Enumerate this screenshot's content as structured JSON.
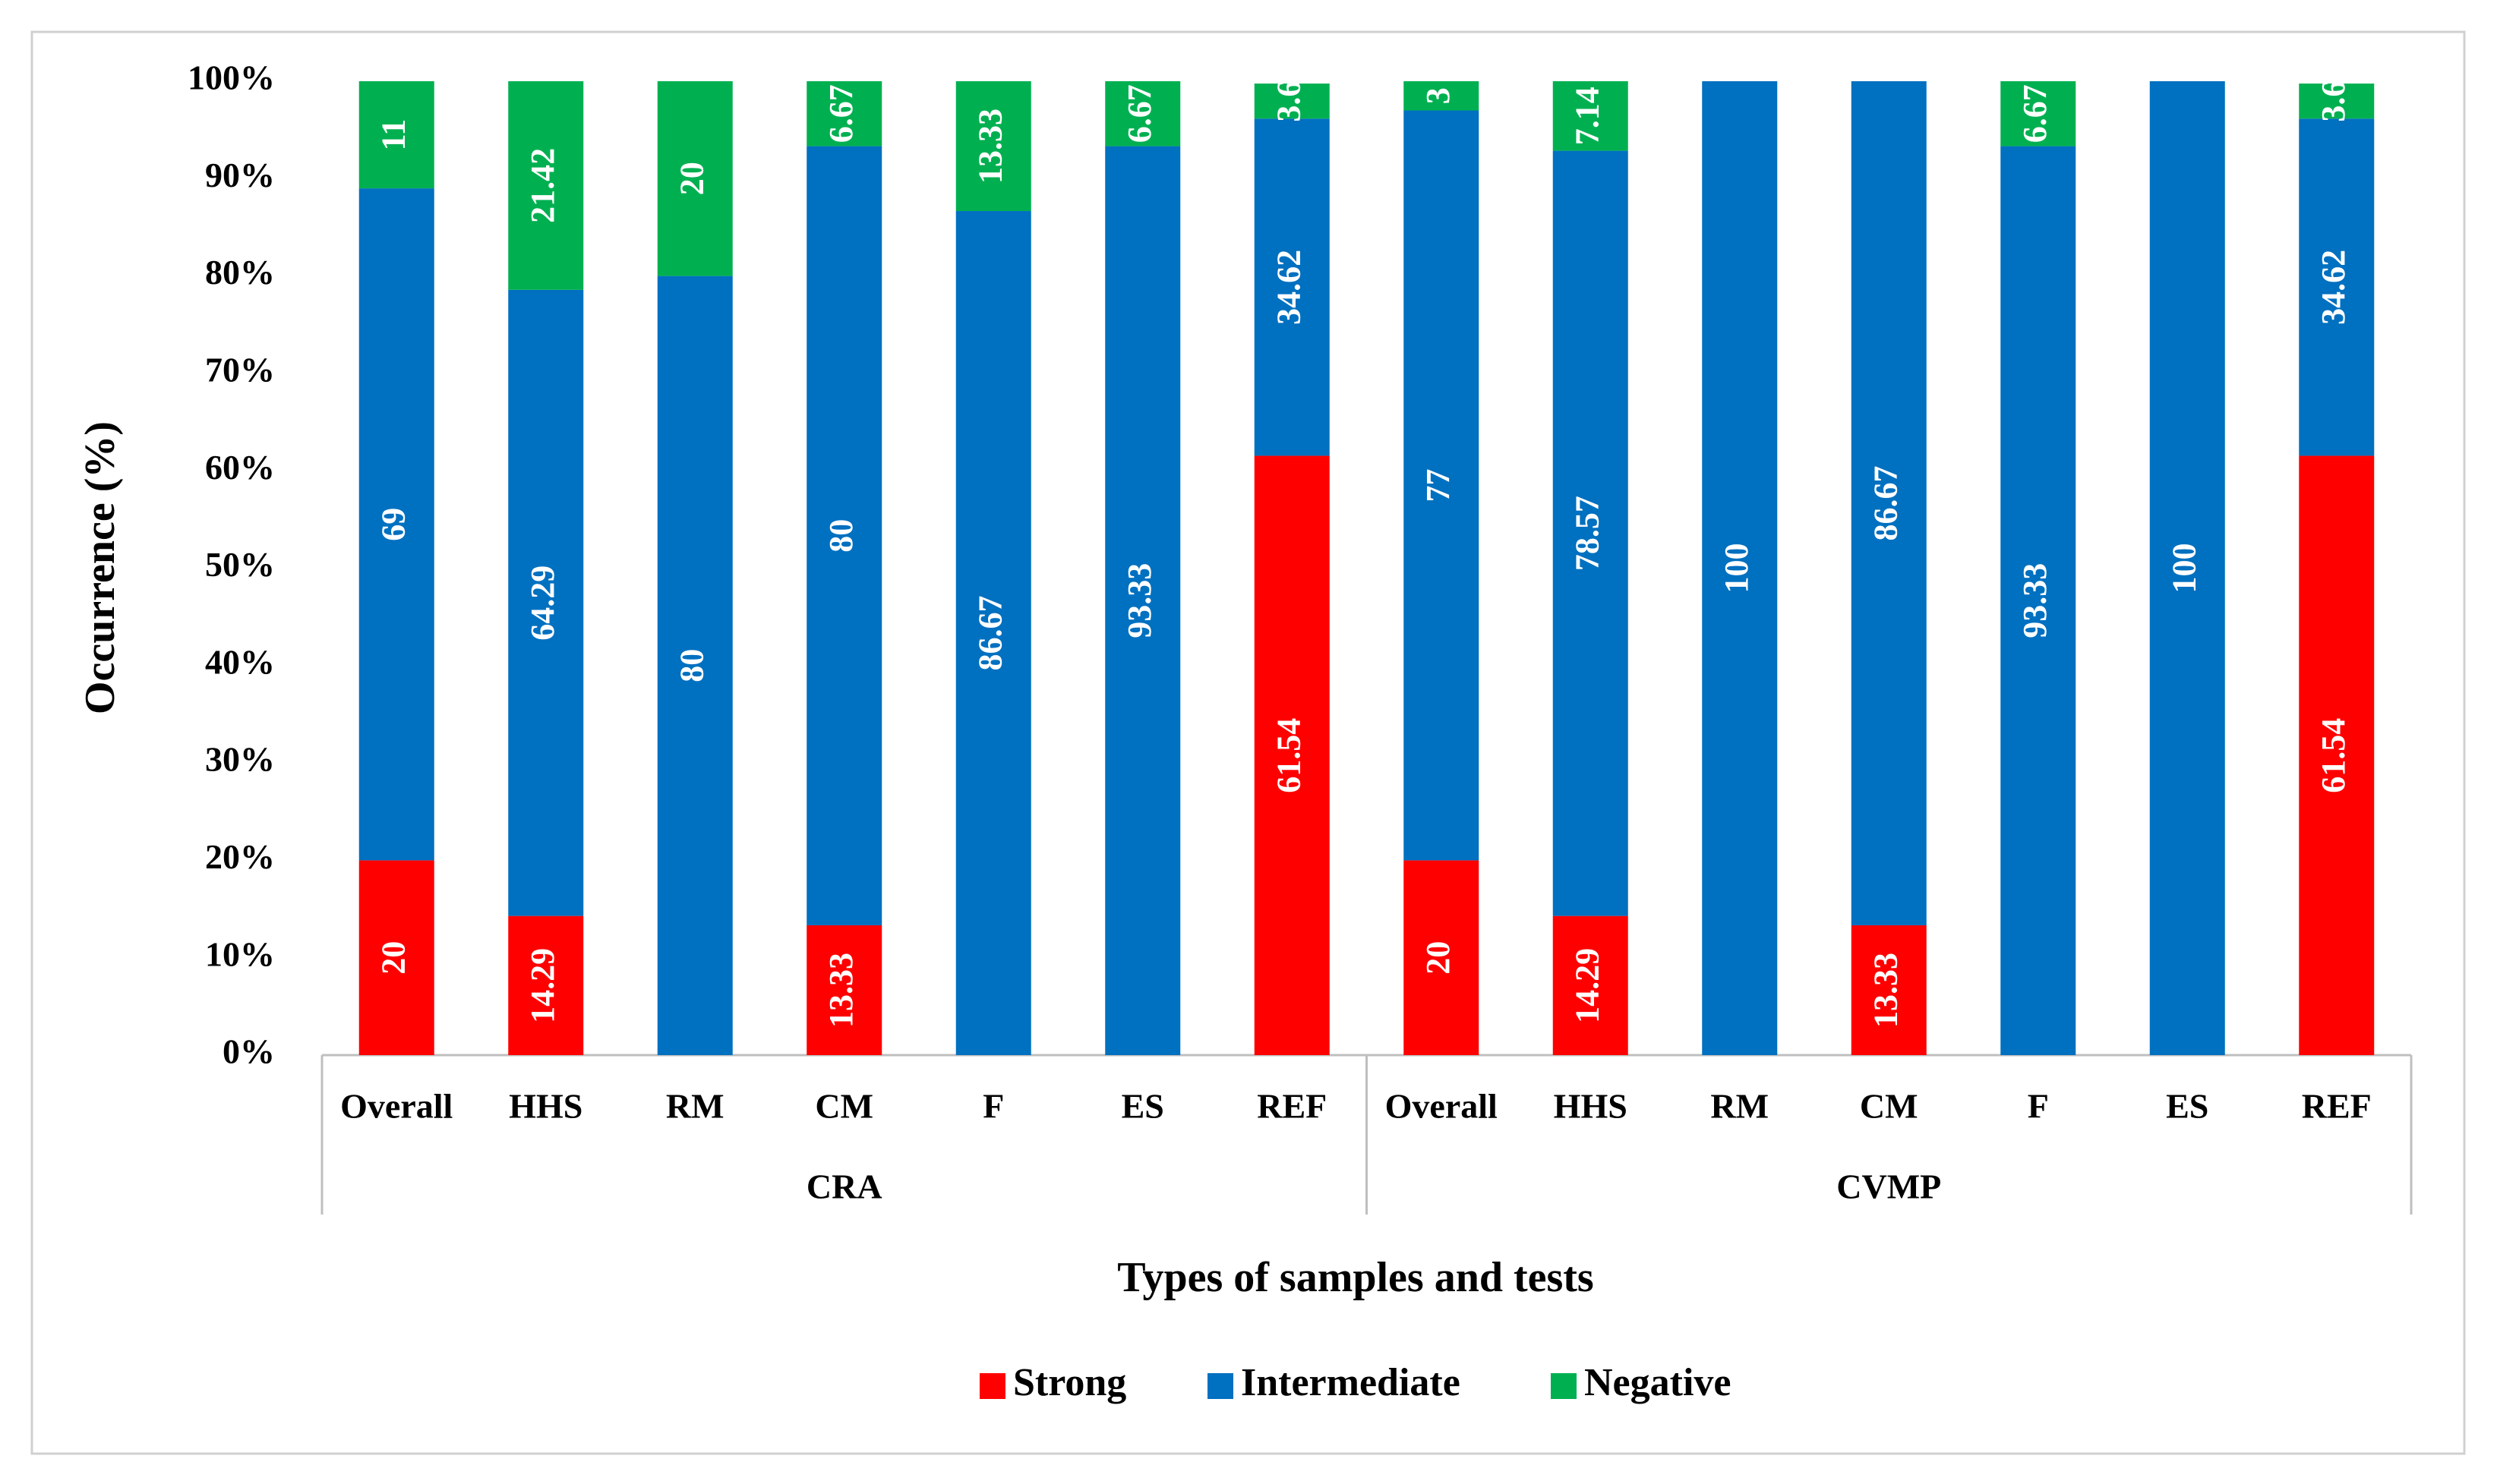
{
  "chart_data": {
    "type": "stacked_bar",
    "x_label": "Types of samples and tests",
    "y_label": "Occurrence (%)",
    "groups": [
      {
        "name": "CRA",
        "categories": [
          "Overall",
          "HHS",
          "RM",
          "CM",
          "F",
          "ES",
          "REF"
        ]
      },
      {
        "name": "CVMP",
        "categories": [
          "Overall",
          "HHS",
          "RM",
          "CM",
          "F",
          "ES",
          "REF"
        ]
      }
    ],
    "series": [
      {
        "name": "Strong",
        "color": "#ff0000",
        "values": [
          20,
          14.29,
          null,
          13.33,
          null,
          null,
          61.54,
          20,
          14.29,
          null,
          13.33,
          null,
          null,
          61.54
        ]
      },
      {
        "name": "Intermediate",
        "color": "#0070c0",
        "values": [
          69,
          64.29,
          80,
          80,
          86.67,
          93.33,
          34.62,
          77,
          78.57,
          100,
          86.67,
          93.33,
          100,
          34.62
        ]
      },
      {
        "name": "Negative",
        "color": "#00b050",
        "values": [
          11,
          21.42,
          20,
          6.67,
          13.33,
          6.67,
          3.6,
          3,
          7.14,
          null,
          null,
          6.67,
          null,
          3.6
        ]
      }
    ],
    "ylim": [
      0,
      100
    ],
    "yticks": [
      {
        "value": 0,
        "label": "0%"
      },
      {
        "value": 10,
        "label": "10%"
      },
      {
        "value": 20,
        "label": "20%"
      },
      {
        "value": 30,
        "label": "30%"
      },
      {
        "value": 40,
        "label": "40%"
      },
      {
        "value": 50,
        "label": "50%"
      },
      {
        "value": 60,
        "label": "60%"
      },
      {
        "value": 70,
        "label": "70%"
      },
      {
        "value": 80,
        "label": "80%"
      },
      {
        "value": 90,
        "label": "90%"
      },
      {
        "value": 100,
        "label": "100%"
      }
    ],
    "legend": "bottom"
  }
}
